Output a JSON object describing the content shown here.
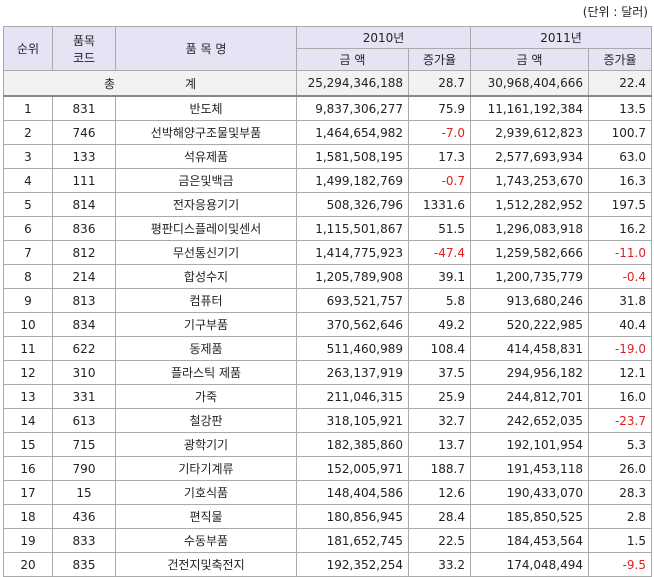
{
  "unit": "(단위 : 달러)",
  "header": {
    "rank": "순위",
    "code": [
      "품목",
      "코드"
    ],
    "name": "품 목 명",
    "year1": "2010년",
    "year2": "2011년",
    "amount1": "금 액",
    "growth1": "증가율",
    "amount2": "금 액",
    "growth2": "증가율"
  },
  "total": {
    "label1": "총",
    "label2": "계",
    "amount1": "25,294,346,188",
    "growth1": "28.7",
    "amount2": "30,968,404,666",
    "growth2": "22.4"
  },
  "rows": [
    [
      "1",
      "831",
      "반도체",
      "9,837,306,277",
      "75.9",
      "11,161,192,384",
      "13.5"
    ],
    [
      "2",
      "746",
      "선박해양구조물및부품",
      "1,464,654,982",
      "-7.0",
      "2,939,612,823",
      "100.7"
    ],
    [
      "3",
      "133",
      "석유제품",
      "1,581,508,195",
      "17.3",
      "2,577,693,934",
      "63.0"
    ],
    [
      "4",
      "111",
      "금은및백금",
      "1,499,182,769",
      "-0.7",
      "1,743,253,670",
      "16.3"
    ],
    [
      "5",
      "814",
      "전자응용기기",
      "508,326,796",
      "1331.6",
      "1,512,282,952",
      "197.5"
    ],
    [
      "6",
      "836",
      "평판디스플레이및센서",
      "1,115,501,867",
      "51.5",
      "1,296,083,918",
      "16.2"
    ],
    [
      "7",
      "812",
      "무선통신기기",
      "1,414,775,923",
      "-47.4",
      "1,259,582,666",
      "-11.0"
    ],
    [
      "8",
      "214",
      "합성수지",
      "1,205,789,908",
      "39.1",
      "1,200,735,779",
      "-0.4"
    ],
    [
      "9",
      "813",
      "컴퓨터",
      "693,521,757",
      "5.8",
      "913,680,246",
      "31.8"
    ],
    [
      "10",
      "834",
      "기구부품",
      "370,562,646",
      "49.2",
      "520,222,985",
      "40.4"
    ],
    [
      "11",
      "622",
      "동제품",
      "511,460,989",
      "108.4",
      "414,458,831",
      "-19.0"
    ],
    [
      "12",
      "310",
      "플라스틱 제품",
      "263,137,919",
      "37.5",
      "294,956,182",
      "12.1"
    ],
    [
      "13",
      "331",
      "가죽",
      "211,046,315",
      "25.9",
      "244,812,701",
      "16.0"
    ],
    [
      "14",
      "613",
      "철강판",
      "318,105,921",
      "32.7",
      "242,652,035",
      "-23.7"
    ],
    [
      "15",
      "715",
      "광학기기",
      "182,385,860",
      "13.7",
      "192,101,954",
      "5.3"
    ],
    [
      "16",
      "790",
      "기타기계류",
      "152,005,971",
      "188.7",
      "191,453,118",
      "26.0"
    ],
    [
      "17",
      "15",
      "기호식품",
      "148,404,586",
      "12.6",
      "190,433,070",
      "28.3"
    ],
    [
      "18",
      "436",
      "편직물",
      "180,856,945",
      "28.4",
      "185,850,525",
      "2.8"
    ],
    [
      "19",
      "833",
      "수동부품",
      "181,652,745",
      "22.5",
      "184,453,564",
      "1.5"
    ],
    [
      "20",
      "835",
      "건전지및축전지",
      "192,352,254",
      "33.2",
      "174,048,494",
      "-9.5"
    ]
  ]
}
